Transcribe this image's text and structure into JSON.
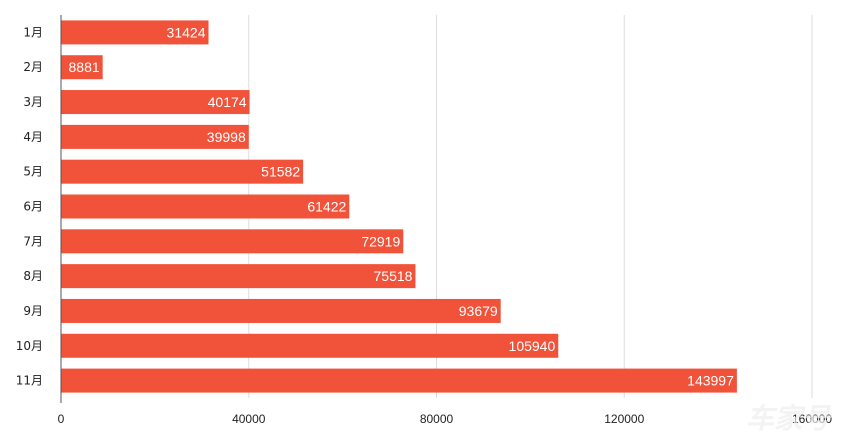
{
  "chart_data": {
    "type": "bar",
    "orientation": "horizontal",
    "categories": [
      "1月",
      "2月",
      "3月",
      "4月",
      "5月",
      "6月",
      "7月",
      "8月",
      "9月",
      "10月",
      "11月"
    ],
    "values": [
      31424,
      8881,
      40174,
      39998,
      51582,
      61422,
      72919,
      75518,
      93679,
      105940,
      143997
    ],
    "x_ticks": [
      "0",
      "40000",
      "80000",
      "120000",
      "160000"
    ],
    "xlim": [
      0,
      160000
    ],
    "grid": "vertical",
    "legend": "none",
    "colors": {
      "bar": "#f0533a",
      "grid": "#dddddd",
      "axis": "#555555",
      "label_text": "#ffffff",
      "tick_text": "#222222",
      "watermark": "#eeeeee"
    },
    "watermark": "车家号"
  }
}
